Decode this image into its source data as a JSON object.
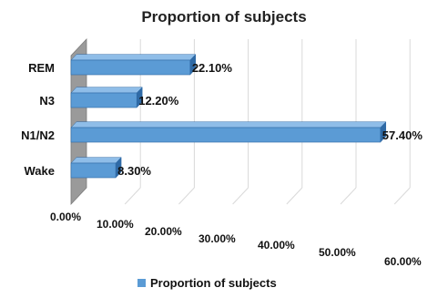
{
  "chart_data": {
    "type": "bar",
    "orientation": "horizontal",
    "three_d": true,
    "title": "Proportion of subjects",
    "categories": [
      "REM",
      "N3",
      "N1/N2",
      "Wake"
    ],
    "series": [
      {
        "name": "Proportion of subjects",
        "values": [
          22.1,
          12.2,
          57.4,
          8.3
        ]
      }
    ],
    "data_labels": [
      "22.10%",
      "12.20%",
      "57.40%",
      "8.30%"
    ],
    "x_ticks": [
      "0.00%",
      "10.00%",
      "20.00%",
      "30.00%",
      "40.00%",
      "50.00%",
      "60.00%"
    ],
    "xlim": [
      0,
      60
    ],
    "xlabel": "",
    "ylabel": "",
    "grid": true,
    "legend": "bottom",
    "colors": {
      "bar": "#5b9bd5",
      "bar_top": "#8fbde8",
      "bar_side": "#2f6aa6",
      "wall": "#9a9a9a"
    }
  }
}
